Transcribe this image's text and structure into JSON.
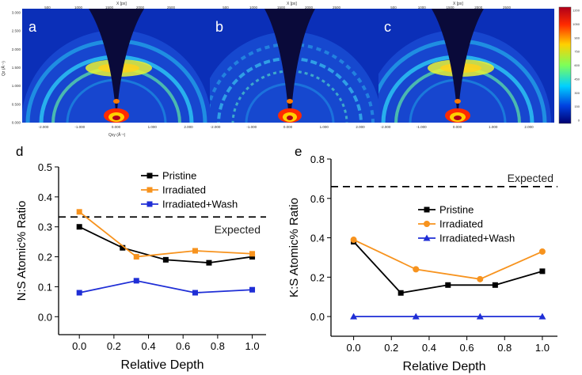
{
  "colors": {
    "pristine": "#000000",
    "irradiated": "#f7931e",
    "wash": "#1f2ed6",
    "expected_line": "#000000",
    "heatmap_bg": "#0b2fb8"
  },
  "heatmap_panels": {
    "labels": [
      "a",
      "b",
      "c"
    ],
    "top_axis_title": "X [px]",
    "top_ticks": [
      "500",
      "1000",
      "1500",
      "2000",
      "2500"
    ],
    "left_axis_title": "Qz (Å⁻¹)",
    "left_ticks": [
      "3.000",
      "2.500",
      "2.000",
      "1.500",
      "1.000",
      "0.500",
      "0.000"
    ],
    "bottom_axis_title": "Qxy (Å⁻¹)",
    "bottom_ticks": [
      "-2.000",
      "-1.000",
      "0.000",
      "1.000",
      "2.000"
    ],
    "colorbar_ticks": [
      "1200",
      "1050",
      "900",
      "750",
      "600",
      "450",
      "300",
      "150",
      "0"
    ]
  },
  "chart_data": [
    {
      "id": "d",
      "type": "line",
      "panel_label": "d",
      "xlabel": "Relative Depth",
      "ylabel": "N:S Atomic% Ratio",
      "xlim": [
        -0.12,
        1.08
      ],
      "ylim": [
        -0.06,
        0.5
      ],
      "xticks": [
        0.0,
        0.2,
        0.4,
        0.6,
        0.8,
        1.0
      ],
      "yticks": [
        0.0,
        0.1,
        0.2,
        0.3,
        0.4,
        0.5
      ],
      "xtick_labels": [
        "0.0",
        "0.2",
        "0.4",
        "0.6",
        "0.8",
        "1.0"
      ],
      "ytick_labels": [
        "0.0",
        "0.1",
        "0.2",
        "0.3",
        "0.4",
        "0.5"
      ],
      "legend_position": "top-right",
      "reference_line": {
        "y": 0.333,
        "label": "Expected"
      },
      "series": [
        {
          "key": "pristine",
          "name": "Pristine",
          "marker": "square",
          "x": [
            0.0,
            0.25,
            0.5,
            0.75,
            1.0
          ],
          "y": [
            0.3,
            0.23,
            0.19,
            0.18,
            0.2
          ]
        },
        {
          "key": "irradiated",
          "name": "Irradiated",
          "marker": "square",
          "x": [
            0.0,
            0.33,
            0.67,
            1.0
          ],
          "y": [
            0.35,
            0.2,
            0.22,
            0.21
          ]
        },
        {
          "key": "wash",
          "name": "Irradiated+Wash",
          "marker": "square",
          "x": [
            0.0,
            0.33,
            0.67,
            1.0
          ],
          "y": [
            0.08,
            0.12,
            0.08,
            0.09
          ]
        }
      ]
    },
    {
      "id": "e",
      "type": "line",
      "panel_label": "e",
      "xlabel": "Relative Depth",
      "ylabel": "K:S Atomic% Ratio",
      "xlim": [
        -0.12,
        1.08
      ],
      "ylim": [
        -0.1,
        0.8
      ],
      "xticks": [
        0.0,
        0.2,
        0.4,
        0.6,
        0.8,
        1.0
      ],
      "yticks": [
        0.0,
        0.2,
        0.4,
        0.6,
        0.8
      ],
      "xtick_labels": [
        "0.0",
        "0.2",
        "0.4",
        "0.6",
        "0.8",
        "1.0"
      ],
      "ytick_labels": [
        "0.0",
        "0.2",
        "0.4",
        "0.6",
        "0.8"
      ],
      "legend_position": "center-right",
      "reference_line": {
        "y": 0.66,
        "label": "Expected"
      },
      "series": [
        {
          "key": "pristine",
          "name": "Pristine",
          "marker": "square",
          "x": [
            0.0,
            0.25,
            0.5,
            0.75,
            1.0
          ],
          "y": [
            0.38,
            0.12,
            0.16,
            0.16,
            0.23
          ]
        },
        {
          "key": "irradiated",
          "name": "Irradiated",
          "marker": "circle",
          "x": [
            0.0,
            0.33,
            0.67,
            1.0
          ],
          "y": [
            0.39,
            0.24,
            0.19,
            0.33
          ]
        },
        {
          "key": "wash",
          "name": "Irradiated+Wash",
          "marker": "triangle",
          "x": [
            0.0,
            0.33,
            0.67,
            1.0
          ],
          "y": [
            0.0,
            0.0,
            0.0,
            0.0
          ]
        }
      ]
    }
  ]
}
